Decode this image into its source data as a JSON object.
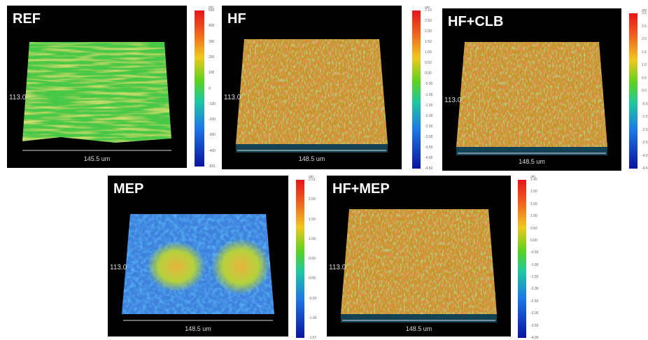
{
  "panels": [
    {
      "label": "REF",
      "y_label": "113.0",
      "x_label": "145.5 um",
      "unit": "nm",
      "scale": [
        "500",
        "400",
        "300",
        "200",
        "100",
        "0",
        "-100",
        "-200",
        "-300",
        "-400",
        "-501"
      ]
    },
    {
      "label": "HF",
      "y_label": "113.0",
      "x_label": "148.5 um",
      "unit": "um",
      "scale": [
        "2.10",
        "2.50",
        "2.00",
        "1.50",
        "1.00",
        "0.50",
        "0.00",
        "-0.50",
        "-1.00",
        "-1.50",
        "-2.00",
        "-2.50",
        "-3.00",
        "-3.50",
        "-4.00",
        "-4.82"
      ]
    },
    {
      "label": "HF+CLB",
      "y_label": "113.0",
      "x_label": "148.5 um",
      "unit": "um",
      "scale": [
        "3.5",
        "2.5",
        "2.0",
        "1.5",
        "1.0",
        "0.5",
        "0.0",
        "-0.5",
        "-1.5",
        "-2.5",
        "-3.5",
        "-4.0",
        "-4.6"
      ]
    },
    {
      "label": "MEP",
      "y_label": "113.0",
      "x_label": "148.5 um",
      "unit": "um",
      "scale": [
        "2.51",
        "2.00",
        "1.50",
        "1.00",
        "0.50",
        "0.00",
        "-0.50",
        "-1.00",
        "-1.57"
      ]
    },
    {
      "label": "HF+MEP",
      "y_label": "113.0",
      "x_label": "148.5 um",
      "unit": "um",
      "scale": [
        "2.45",
        "2.00",
        "1.50",
        "1.00",
        "0.50",
        "0.00",
        "-0.50",
        "-1.00",
        "-1.50",
        "-2.00",
        "-2.50",
        "-3.00",
        "-3.50",
        "-4.00"
      ]
    }
  ]
}
